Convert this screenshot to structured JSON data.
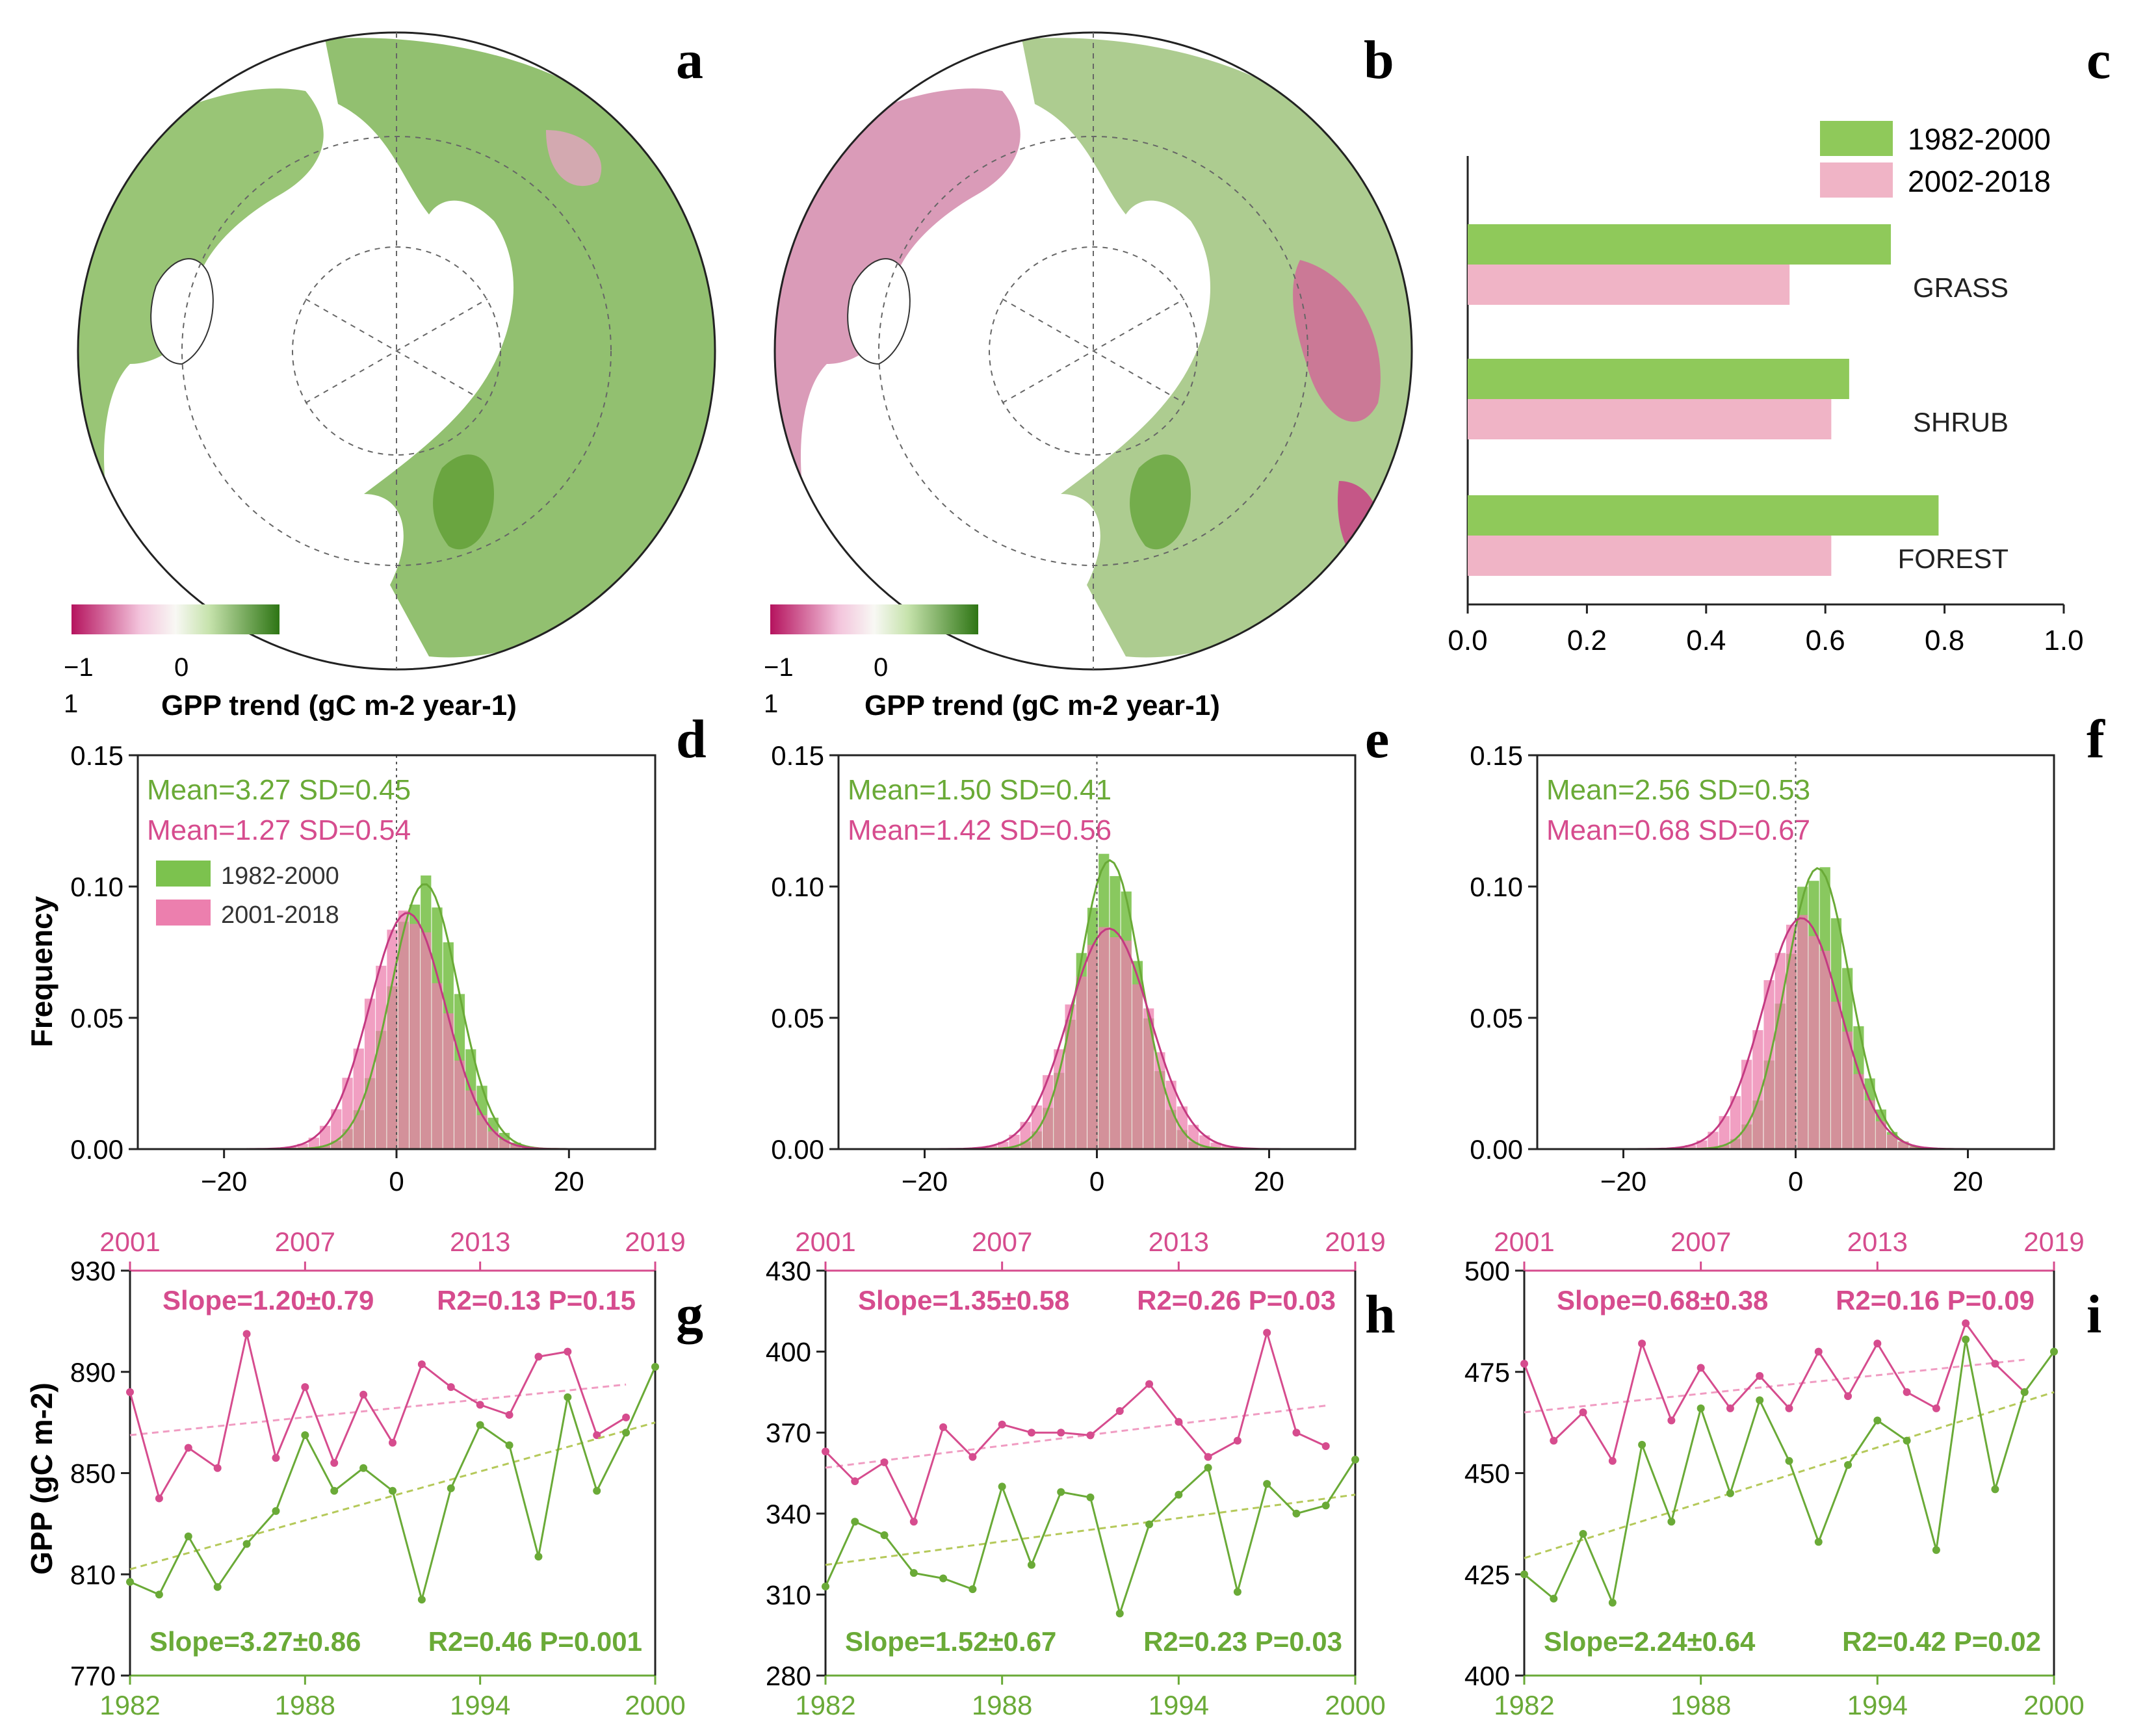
{
  "colors": {
    "green": "#6aaa37",
    "green_fill": "#7cc24e",
    "pink": "#d64c8e",
    "pink_fill": "#ec7fae",
    "bar_green": "#8fc95a",
    "bar_pink": "#f0b4c6",
    "map_ocean": "#ffffff",
    "map_land_green": "#7fb25a",
    "map_land_pink": "#d8789f"
  },
  "panel_letters": [
    "a",
    "b",
    "c",
    "d",
    "e",
    "f",
    "g",
    "h",
    "i"
  ],
  "maps": [
    {
      "id": "a",
      "colorbar": {
        "ticks": [
          "−1",
          "0"
        ],
        "extra_tick": "1",
        "label": "GPP trend (gC m-2 year-1)"
      },
      "land_tint": "green"
    },
    {
      "id": "b",
      "colorbar": {
        "ticks": [
          "−1",
          "0"
        ],
        "extra_tick": "1",
        "label": "GPP trend (gC m-2 year-1)"
      },
      "land_tint": "mixed"
    }
  ],
  "chart_data": [
    {
      "panel": "c",
      "type": "bar",
      "orientation": "horizontal",
      "categories": [
        "GRASS",
        "SHRUB",
        "FOREST"
      ],
      "series": [
        {
          "name": "1982-2000",
          "values": [
            0.71,
            0.64,
            0.79
          ]
        },
        {
          "name": "2002-2018",
          "values": [
            0.54,
            0.61,
            0.61
          ]
        }
      ],
      "xlim": [
        0,
        1.0
      ],
      "xticks": [
        "0.0",
        "0.2",
        "0.4",
        "0.6",
        "0.8",
        "1.0"
      ],
      "legend": "top-right"
    },
    {
      "panel": "d",
      "type": "histogram",
      "ylabel": "Frequency",
      "xlim": [
        -30,
        30
      ],
      "ylim": [
        0,
        0.15
      ],
      "xticks": [
        "−20",
        "0",
        "20"
      ],
      "yticks": [
        "0.00",
        "0.05",
        "0.10",
        "0.15"
      ],
      "annotations": [
        "Mean=3.27 SD=0.45",
        "Mean=1.27 SD=0.54"
      ],
      "legend": [
        "1982-2000",
        "2001-2018"
      ],
      "series": [
        {
          "name": "1982-2000",
          "mean": 3.27,
          "peak": 0.101,
          "sigma": 3.9
        },
        {
          "name": "2001-2018",
          "mean": 1.27,
          "peak": 0.09,
          "sigma": 4.4
        }
      ]
    },
    {
      "panel": "e",
      "type": "histogram",
      "xlim": [
        -30,
        30
      ],
      "ylim": [
        0,
        0.15
      ],
      "xticks": [
        "−20",
        "0",
        "20"
      ],
      "yticks": [
        "0.00",
        "0.05",
        "0.10",
        "0.15"
      ],
      "annotations": [
        "Mean=1.50 SD=0.41",
        "Mean=1.42 SD=0.56"
      ],
      "series": [
        {
          "name": "1982-2000",
          "mean": 1.5,
          "peak": 0.11,
          "sigma": 3.6
        },
        {
          "name": "2001-2018",
          "mean": 1.42,
          "peak": 0.084,
          "sigma": 4.7
        }
      ]
    },
    {
      "panel": "f",
      "type": "histogram",
      "xlim": [
        -30,
        30
      ],
      "ylim": [
        0,
        0.15
      ],
      "xticks": [
        "−20",
        "0",
        "20"
      ],
      "yticks": [
        "0.00",
        "0.05",
        "0.10",
        "0.15"
      ],
      "annotations": [
        "Mean=2.56 SD=0.53",
        "Mean=0.68 SD=0.67"
      ],
      "series": [
        {
          "name": "1982-2000",
          "mean": 2.56,
          "peak": 0.107,
          "sigma": 3.7
        },
        {
          "name": "2001-2018",
          "mean": 0.68,
          "peak": 0.088,
          "sigma": 4.5
        }
      ]
    },
    {
      "panel": "g",
      "type": "line",
      "ylabel": "GPP (gC m-2)",
      "ylim": [
        770,
        930
      ],
      "yticks": [
        "770",
        "810",
        "850",
        "890",
        "930"
      ],
      "x_bottom": {
        "range": [
          1982,
          2000
        ],
        "ticks": [
          "1982",
          "1988",
          "1994",
          "2000"
        ]
      },
      "x_top": {
        "range": [
          2001,
          2019
        ],
        "ticks": [
          "2001",
          "2007",
          "2013",
          "2019"
        ]
      },
      "annotations": [
        "Slope=1.20±0.79",
        "R2=0.13 P=0.15",
        "Slope=3.27±0.86",
        "R2=0.46 P=0.001"
      ],
      "series": [
        {
          "axis": "top",
          "x": [
            2001,
            2002,
            2003,
            2004,
            2005,
            2006,
            2007,
            2008,
            2009,
            2010,
            2011,
            2012,
            2013,
            2014,
            2015,
            2016,
            2017,
            2018
          ],
          "values": [
            882,
            840,
            860,
            852,
            905,
            856,
            884,
            854,
            881,
            862,
            893,
            884,
            877,
            873,
            896,
            898,
            865,
            872
          ],
          "trend": [
            865,
            885
          ]
        },
        {
          "axis": "bottom",
          "x": [
            1982,
            1983,
            1984,
            1985,
            1986,
            1987,
            1988,
            1989,
            1990,
            1991,
            1992,
            1993,
            1994,
            1995,
            1996,
            1997,
            1998,
            1999,
            2000
          ],
          "values": [
            807,
            802,
            825,
            805,
            822,
            835,
            865,
            843,
            852,
            843,
            800,
            844,
            869,
            861,
            817,
            880,
            843,
            866,
            892
          ],
          "trend": [
            812,
            870
          ]
        }
      ]
    },
    {
      "panel": "h",
      "type": "line",
      "ylim": [
        280,
        430
      ],
      "yticks": [
        "280",
        "310",
        "340",
        "370",
        "400",
        "430"
      ],
      "x_bottom": {
        "range": [
          1982,
          2000
        ],
        "ticks": [
          "1982",
          "1988",
          "1994",
          "2000"
        ]
      },
      "x_top": {
        "range": [
          2001,
          2019
        ],
        "ticks": [
          "2001",
          "2007",
          "2013",
          "2019"
        ]
      },
      "annotations": [
        "Slope=1.35±0.58",
        "R2=0.26 P=0.03",
        "Slope=1.52±0.67",
        "R2=0.23 P=0.03"
      ],
      "series": [
        {
          "axis": "top",
          "x": [
            2001,
            2002,
            2003,
            2004,
            2005,
            2006,
            2007,
            2008,
            2009,
            2010,
            2011,
            2012,
            2013,
            2014,
            2015,
            2016,
            2017,
            2018
          ],
          "values": [
            363,
            352,
            359,
            337,
            372,
            361,
            373,
            370,
            370,
            369,
            378,
            388,
            374,
            361,
            367,
            407,
            370,
            365
          ],
          "trend": [
            357,
            380
          ]
        },
        {
          "axis": "bottom",
          "x": [
            1982,
            1983,
            1984,
            1985,
            1986,
            1987,
            1988,
            1989,
            1990,
            1991,
            1992,
            1993,
            1994,
            1995,
            1996,
            1997,
            1998,
            1999,
            2000
          ],
          "values": [
            313,
            337,
            332,
            318,
            316,
            312,
            350,
            321,
            348,
            346,
            303,
            336,
            347,
            357,
            311,
            351,
            340,
            343,
            360
          ],
          "trend": [
            321,
            347
          ]
        }
      ]
    },
    {
      "panel": "i",
      "type": "line",
      "ylim": [
        400,
        500
      ],
      "yticks": [
        "400",
        "425",
        "450",
        "475",
        "500"
      ],
      "x_bottom": {
        "range": [
          1982,
          2000
        ],
        "ticks": [
          "1982",
          "1988",
          "1994",
          "2000"
        ]
      },
      "x_top": {
        "range": [
          2001,
          2019
        ],
        "ticks": [
          "2001",
          "2007",
          "2013",
          "2019"
        ]
      },
      "annotations": [
        "Slope=0.68±0.38",
        "R2=0.16 P=0.09",
        "Slope=2.24±0.64",
        "R2=0.42 P=0.02"
      ],
      "series": [
        {
          "axis": "top",
          "x": [
            2001,
            2002,
            2003,
            2004,
            2005,
            2006,
            2007,
            2008,
            2009,
            2010,
            2011,
            2012,
            2013,
            2014,
            2015,
            2016,
            2017,
            2018
          ],
          "values": [
            477,
            458,
            465,
            453,
            482,
            463,
            476,
            466,
            474,
            466,
            480,
            469,
            482,
            470,
            466,
            487,
            477,
            470
          ],
          "trend": [
            465,
            478
          ]
        },
        {
          "axis": "bottom",
          "x": [
            1982,
            1983,
            1984,
            1985,
            1986,
            1987,
            1988,
            1989,
            1990,
            1991,
            1992,
            1993,
            1994,
            1995,
            1996,
            1997,
            1998,
            1999,
            2000
          ],
          "values": [
            425,
            419,
            435,
            418,
            457,
            438,
            466,
            445,
            468,
            453,
            433,
            452,
            463,
            458,
            431,
            483,
            446,
            470,
            480
          ],
          "trend": [
            429,
            470
          ]
        }
      ]
    }
  ]
}
